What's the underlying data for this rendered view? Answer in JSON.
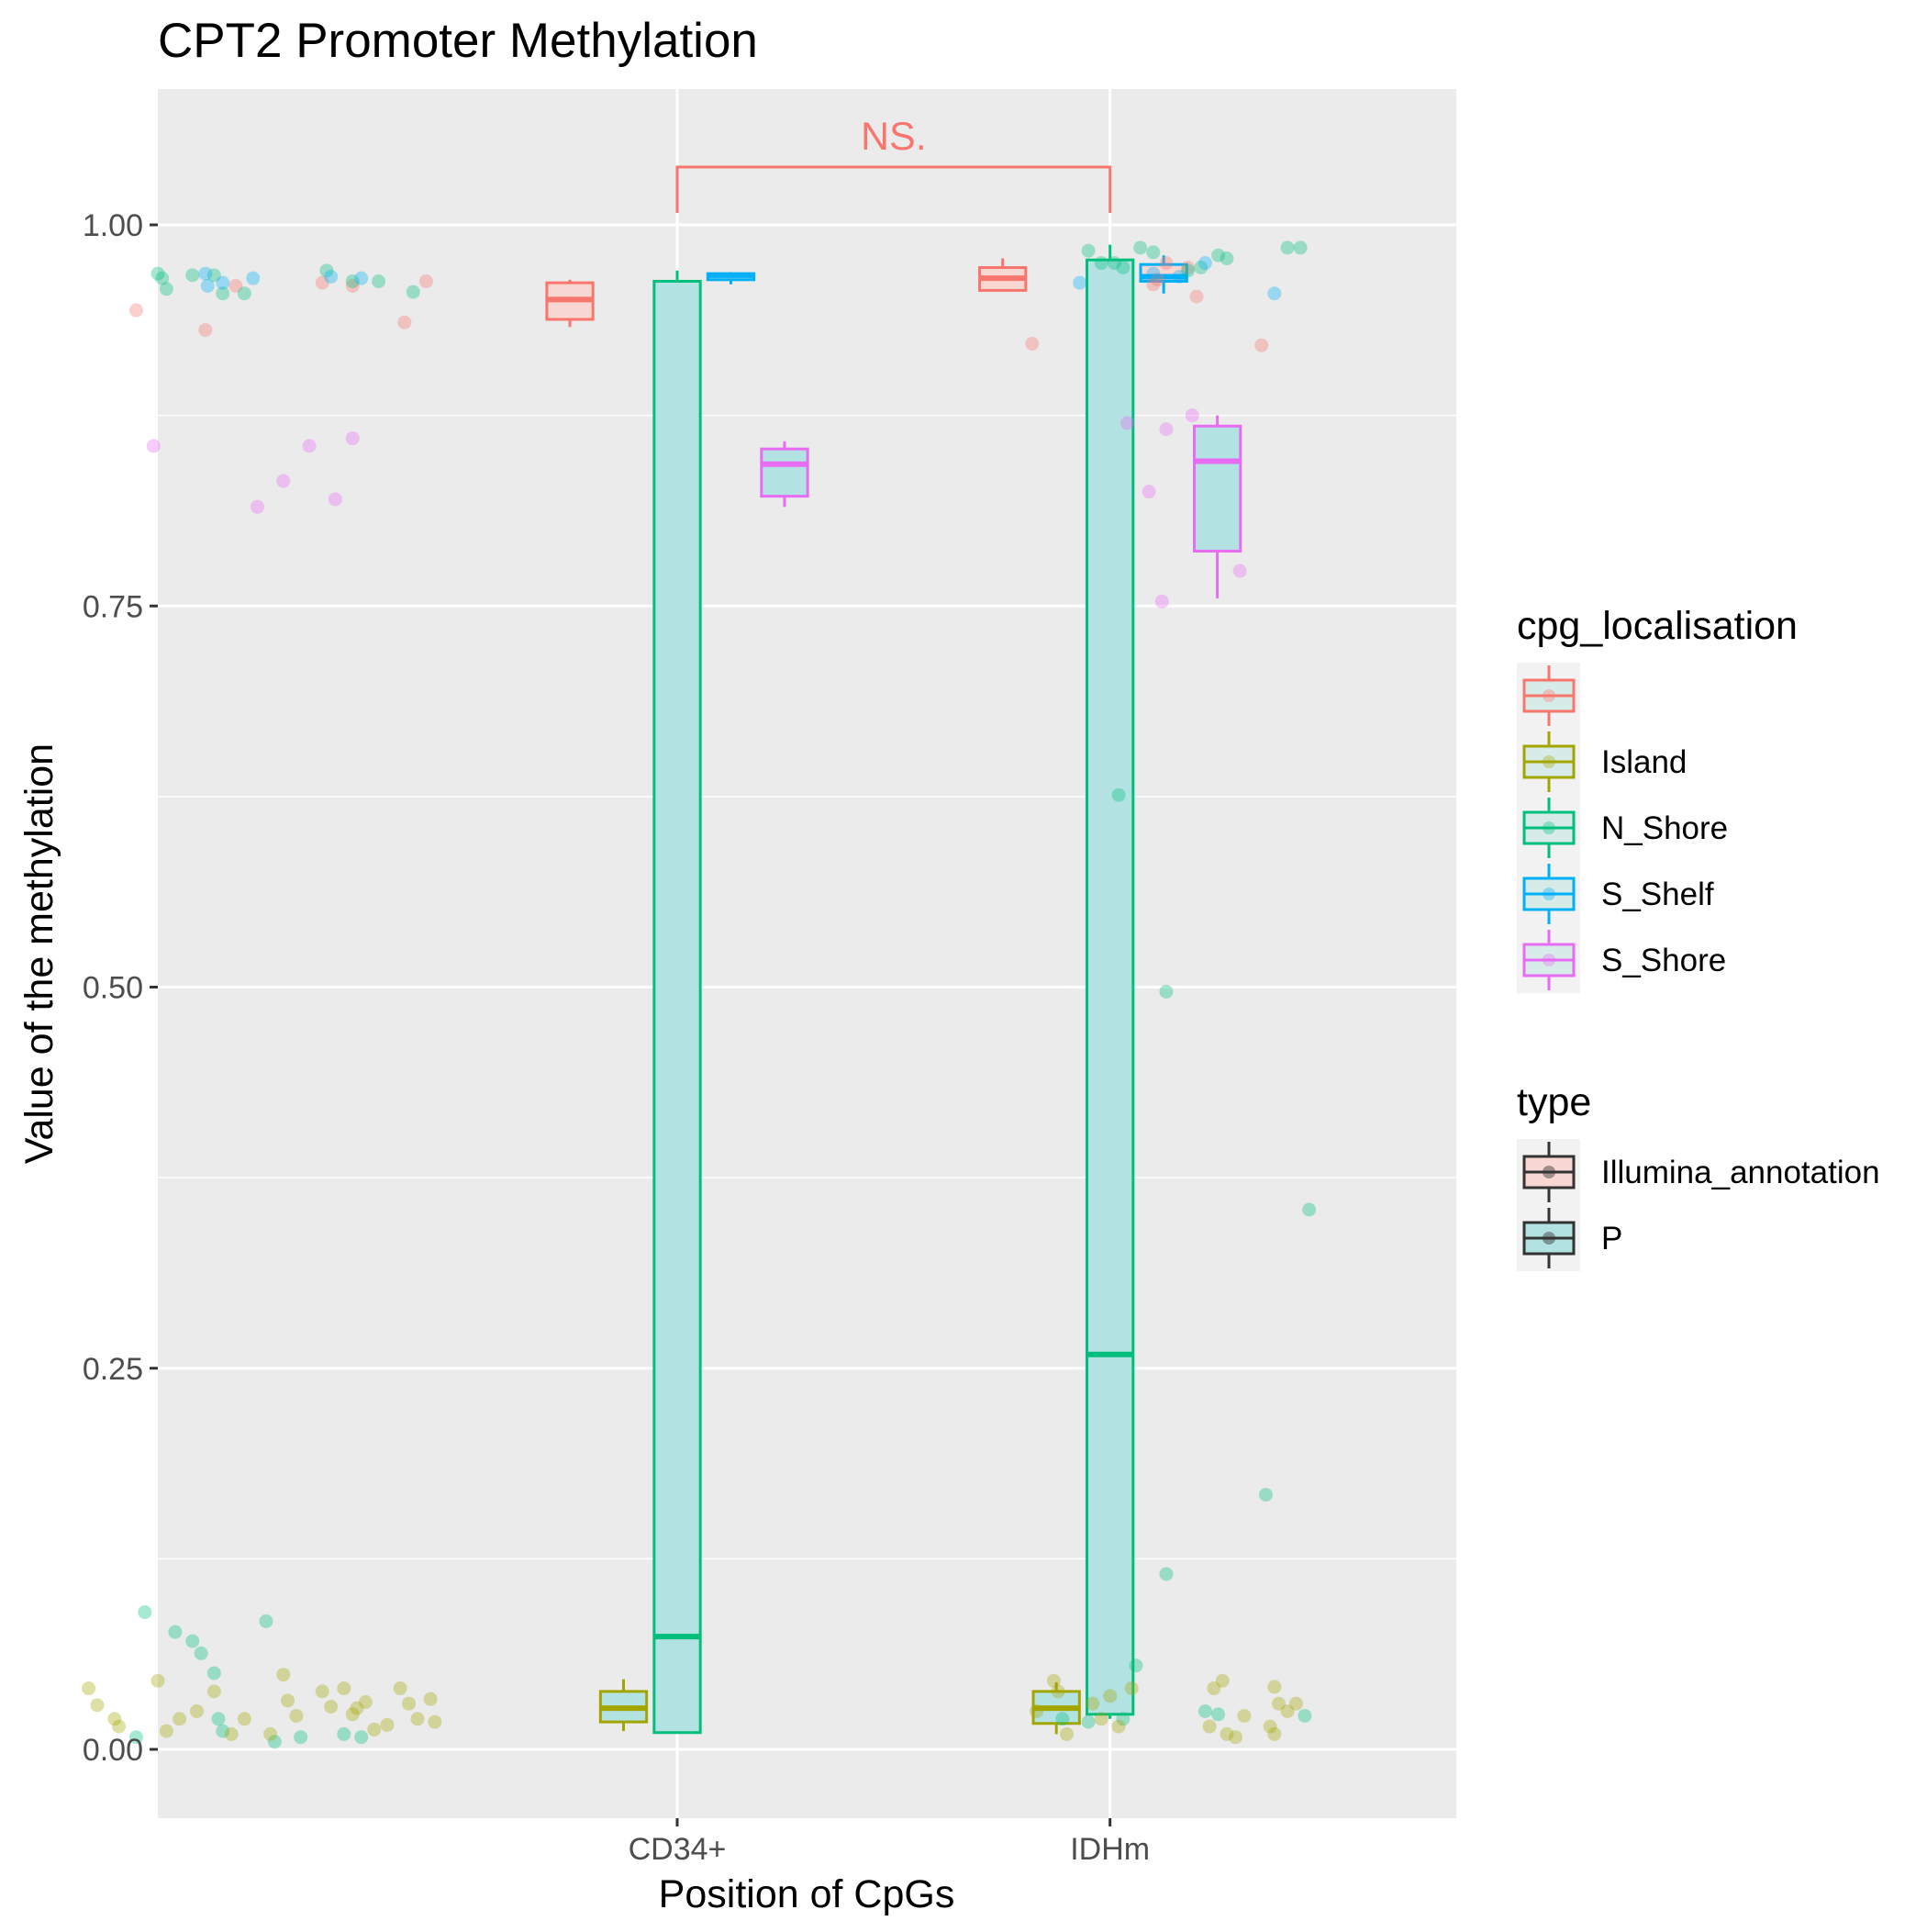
{
  "chart_data": {
    "type": "box",
    "title": "CPT2 Promoter Methylation",
    "xlabel": "Position of CpGs",
    "ylabel": "Value of the methylation",
    "categories": [
      "CD34+",
      "IDHm"
    ],
    "ylim": [
      -0.04,
      1.09
    ],
    "yticks": [
      0.0,
      0.25,
      0.5,
      0.75,
      1.0
    ],
    "ytick_labels": [
      "0.00",
      "0.25",
      "0.50",
      "0.75",
      "1.00"
    ],
    "grid": true,
    "legend_placement": "right",
    "colors": {
      "": "#F8766D",
      "Island": "#A3A500",
      "N_Shore": "#00BF7D",
      "S_Shelf": "#00B0F6",
      "S_Shore": "#E76BF3"
    },
    "fill_colors": {
      "Illumina_annotation": "#F8D7D3",
      "P": "#B2E2E2"
    },
    "boxes": [
      {
        "category": "CD34+",
        "cpg_localisation": "",
        "type": "Illumina_annotation",
        "q1": 0.938,
        "median": 0.951,
        "q3": 0.962,
        "whisker_low": 0.933,
        "whisker_high": 0.964
      },
      {
        "category": "CD34+",
        "cpg_localisation": "Island",
        "type": "P",
        "q1": 0.018,
        "median": 0.027,
        "q3": 0.038,
        "whisker_low": 0.012,
        "whisker_high": 0.046
      },
      {
        "category": "CD34+",
        "cpg_localisation": "N_Shore",
        "type": "P",
        "q1": 0.011,
        "median": 0.074,
        "q3": 0.963,
        "whisker_low": 0.011,
        "whisker_high": 0.97
      },
      {
        "category": "CD34+",
        "cpg_localisation": "S_Shelf",
        "type": "P",
        "q1": 0.964,
        "median": 0.967,
        "q3": 0.968,
        "whisker_low": 0.961,
        "whisker_high": 0.969
      },
      {
        "category": "CD34+",
        "cpg_localisation": "S_Shore",
        "type": "P",
        "q1": 0.822,
        "median": 0.843,
        "q3": 0.853,
        "whisker_low": 0.815,
        "whisker_high": 0.858
      },
      {
        "category": "IDHm",
        "cpg_localisation": "",
        "type": "Illumina_annotation",
        "q1": 0.957,
        "median": 0.965,
        "q3": 0.972,
        "whisker_low": 0.957,
        "whisker_high": 0.978
      },
      {
        "category": "IDHm",
        "cpg_localisation": "Island",
        "type": "P",
        "q1": 0.017,
        "median": 0.027,
        "q3": 0.038,
        "whisker_low": 0.01,
        "whisker_high": 0.044
      },
      {
        "category": "IDHm",
        "cpg_localisation": "N_Shore",
        "type": "P",
        "q1": 0.023,
        "median": 0.259,
        "q3": 0.977,
        "whisker_low": 0.02,
        "whisker_high": 0.987
      },
      {
        "category": "IDHm",
        "cpg_localisation": "S_Shelf",
        "type": "Illumina_annotation",
        "q1": 0.963,
        "median": 0.966,
        "q3": 0.974,
        "whisker_low": 0.955,
        "whisker_high": 0.98
      },
      {
        "category": "IDHm",
        "cpg_localisation": "S_Shore",
        "type": "P",
        "q1": 0.786,
        "median": 0.845,
        "q3": 0.868,
        "whisker_low": 0.755,
        "whisker_high": 0.875
      }
    ],
    "points": [
      {
        "x": -0.21,
        "y": 0.855,
        "loc": "S_Shore"
      },
      {
        "x": 0.03,
        "y": 0.815,
        "loc": "S_Shore"
      },
      {
        "x": 0.09,
        "y": 0.832,
        "loc": "S_Shore"
      },
      {
        "x": 0.25,
        "y": 0.86,
        "loc": "S_Shore"
      },
      {
        "x": 0.21,
        "y": 0.82,
        "loc": "S_Shore"
      },
      {
        "x": 0.15,
        "y": 0.855,
        "loc": "S_Shore"
      },
      {
        "x": -0.25,
        "y": 0.944,
        "loc": ""
      },
      {
        "x": -0.09,
        "y": 0.931,
        "loc": ""
      },
      {
        "x": -0.02,
        "y": 0.96,
        "loc": ""
      },
      {
        "x": 0.18,
        "y": 0.962,
        "loc": ""
      },
      {
        "x": 0.25,
        "y": 0.96,
        "loc": ""
      },
      {
        "x": 0.37,
        "y": 0.936,
        "loc": ""
      },
      {
        "x": 0.42,
        "y": 0.963,
        "loc": ""
      },
      {
        "x": -0.2,
        "y": 0.968,
        "loc": "N_Shore"
      },
      {
        "x": -0.19,
        "y": 0.965,
        "loc": "N_Shore"
      },
      {
        "x": -0.18,
        "y": 0.958,
        "loc": "N_Shore"
      },
      {
        "x": -0.12,
        "y": 0.967,
        "loc": "N_Shore"
      },
      {
        "x": -0.07,
        "y": 0.967,
        "loc": "N_Shore"
      },
      {
        "x": -0.05,
        "y": 0.955,
        "loc": "N_Shore"
      },
      {
        "x": 0.0,
        "y": 0.955,
        "loc": "N_Shore"
      },
      {
        "x": 0.19,
        "y": 0.97,
        "loc": "N_Shore"
      },
      {
        "x": 0.25,
        "y": 0.963,
        "loc": "N_Shore"
      },
      {
        "x": 0.31,
        "y": 0.963,
        "loc": "N_Shore"
      },
      {
        "x": 0.39,
        "y": 0.956,
        "loc": "N_Shore"
      },
      {
        "x": -0.09,
        "y": 0.968,
        "loc": "S_Shelf"
      },
      {
        "x": -0.085,
        "y": 0.96,
        "loc": "S_Shelf"
      },
      {
        "x": -0.05,
        "y": 0.962,
        "loc": "S_Shelf"
      },
      {
        "x": 0.02,
        "y": 0.965,
        "loc": "S_Shelf"
      },
      {
        "x": 0.2,
        "y": 0.966,
        "loc": "S_Shelf"
      },
      {
        "x": 0.27,
        "y": 0.965,
        "loc": "S_Shelf"
      },
      {
        "x": -0.23,
        "y": 0.09,
        "loc": "N_Shore"
      },
      {
        "x": -0.16,
        "y": 0.077,
        "loc": "N_Shore"
      },
      {
        "x": -0.12,
        "y": 0.071,
        "loc": "N_Shore"
      },
      {
        "x": -0.1,
        "y": 0.063,
        "loc": "N_Shore"
      },
      {
        "x": 0.05,
        "y": 0.084,
        "loc": "N_Shore"
      },
      {
        "x": -0.07,
        "y": 0.05,
        "loc": "N_Shore"
      },
      {
        "x": -0.06,
        "y": 0.02,
        "loc": "N_Shore"
      },
      {
        "x": -0.05,
        "y": 0.012,
        "loc": "N_Shore"
      },
      {
        "x": 0.07,
        "y": 0.005,
        "loc": "N_Shore"
      },
      {
        "x": 0.13,
        "y": 0.008,
        "loc": "N_Shore"
      },
      {
        "x": 0.23,
        "y": 0.01,
        "loc": "N_Shore"
      },
      {
        "x": 0.27,
        "y": 0.008,
        "loc": "N_Shore"
      },
      {
        "x": -0.25,
        "y": 0.008,
        "loc": "N_Shore"
      },
      {
        "x": -0.36,
        "y": 0.04,
        "loc": "Island"
      },
      {
        "x": -0.34,
        "y": 0.029,
        "loc": "Island"
      },
      {
        "x": -0.29,
        "y": 0.015,
        "loc": "Island"
      },
      {
        "x": -0.2,
        "y": 0.045,
        "loc": "Island"
      },
      {
        "x": -0.18,
        "y": 0.012,
        "loc": "Island"
      },
      {
        "x": -0.15,
        "y": 0.02,
        "loc": "Island"
      },
      {
        "x": -0.11,
        "y": 0.025,
        "loc": "Island"
      },
      {
        "x": -0.07,
        "y": 0.038,
        "loc": "Island"
      },
      {
        "x": -0.03,
        "y": 0.01,
        "loc": "Island"
      },
      {
        "x": 0.0,
        "y": 0.02,
        "loc": "Island"
      },
      {
        "x": 0.06,
        "y": 0.01,
        "loc": "Island"
      },
      {
        "x": 0.09,
        "y": 0.049,
        "loc": "Island"
      },
      {
        "x": 0.1,
        "y": 0.032,
        "loc": "Island"
      },
      {
        "x": 0.12,
        "y": 0.022,
        "loc": "Island"
      },
      {
        "x": 0.18,
        "y": 0.038,
        "loc": "Island"
      },
      {
        "x": 0.2,
        "y": 0.028,
        "loc": "Island"
      },
      {
        "x": 0.25,
        "y": 0.023,
        "loc": "Island"
      },
      {
        "x": 0.28,
        "y": 0.031,
        "loc": "Island"
      },
      {
        "x": 0.3,
        "y": 0.013,
        "loc": "Island"
      },
      {
        "x": 0.33,
        "y": 0.016,
        "loc": "Island"
      },
      {
        "x": 0.36,
        "y": 0.04,
        "loc": "Island"
      },
      {
        "x": 0.38,
        "y": 0.03,
        "loc": "Island"
      },
      {
        "x": 0.4,
        "y": 0.02,
        "loc": "Island"
      },
      {
        "x": 0.43,
        "y": 0.033,
        "loc": "Island"
      },
      {
        "x": 0.44,
        "y": 0.018,
        "loc": "Island"
      },
      {
        "x": 0.23,
        "y": 0.04,
        "loc": "Island"
      },
      {
        "x": 0.26,
        "y": 0.027,
        "loc": "Island"
      },
      {
        "x": -0.3,
        "y": 0.02,
        "loc": "Island"
      },
      {
        "x": 1.82,
        "y": 0.922,
        "loc": ""
      },
      {
        "x": 2.1,
        "y": 0.961,
        "loc": ""
      },
      {
        "x": 2.11,
        "y": 0.964,
        "loc": ""
      },
      {
        "x": 2.13,
        "y": 0.975,
        "loc": ""
      },
      {
        "x": 2.18,
        "y": 0.972,
        "loc": ""
      },
      {
        "x": 2.2,
        "y": 0.953,
        "loc": ""
      },
      {
        "x": 2.35,
        "y": 0.921,
        "loc": ""
      },
      {
        "x": 1.95,
        "y": 0.983,
        "loc": "N_Shore"
      },
      {
        "x": 1.98,
        "y": 0.975,
        "loc": "N_Shore"
      },
      {
        "x": 2.01,
        "y": 0.975,
        "loc": "N_Shore"
      },
      {
        "x": 2.03,
        "y": 0.972,
        "loc": "N_Shore"
      },
      {
        "x": 2.07,
        "y": 0.985,
        "loc": "N_Shore"
      },
      {
        "x": 2.1,
        "y": 0.982,
        "loc": "N_Shore"
      },
      {
        "x": 2.18,
        "y": 0.97,
        "loc": "N_Shore"
      },
      {
        "x": 2.21,
        "y": 0.972,
        "loc": "N_Shore"
      },
      {
        "x": 2.25,
        "y": 0.98,
        "loc": "N_Shore"
      },
      {
        "x": 2.27,
        "y": 0.978,
        "loc": "N_Shore"
      },
      {
        "x": 2.41,
        "y": 0.985,
        "loc": "N_Shore"
      },
      {
        "x": 2.44,
        "y": 0.985,
        "loc": "N_Shore"
      },
      {
        "x": 1.93,
        "y": 0.962,
        "loc": "S_Shelf"
      },
      {
        "x": 2.1,
        "y": 0.968,
        "loc": "S_Shelf"
      },
      {
        "x": 2.16,
        "y": 0.966,
        "loc": "S_Shelf"
      },
      {
        "x": 2.22,
        "y": 0.975,
        "loc": "S_Shelf"
      },
      {
        "x": 2.38,
        "y": 0.955,
        "loc": "S_Shelf"
      },
      {
        "x": 2.04,
        "y": 0.87,
        "loc": "S_Shore"
      },
      {
        "x": 2.09,
        "y": 0.825,
        "loc": "S_Shore"
      },
      {
        "x": 2.13,
        "y": 0.866,
        "loc": "S_Shore"
      },
      {
        "x": 2.19,
        "y": 0.875,
        "loc": "S_Shore"
      },
      {
        "x": 2.3,
        "y": 0.773,
        "loc": "S_Shore"
      },
      {
        "x": 2.12,
        "y": 0.753,
        "loc": "S_Shore"
      },
      {
        "x": 2.02,
        "y": 0.626,
        "loc": "N_Shore"
      },
      {
        "x": 2.13,
        "y": 0.497,
        "loc": "N_Shore"
      },
      {
        "x": 2.46,
        "y": 0.354,
        "loc": "N_Shore"
      },
      {
        "x": 2.36,
        "y": 0.167,
        "loc": "N_Shore"
      },
      {
        "x": 2.13,
        "y": 0.115,
        "loc": "N_Shore"
      },
      {
        "x": 2.06,
        "y": 0.055,
        "loc": "N_Shore"
      },
      {
        "x": 1.89,
        "y": 0.02,
        "loc": "N_Shore"
      },
      {
        "x": 1.95,
        "y": 0.018,
        "loc": "N_Shore"
      },
      {
        "x": 2.03,
        "y": 0.02,
        "loc": "N_Shore"
      },
      {
        "x": 2.22,
        "y": 0.025,
        "loc": "N_Shore"
      },
      {
        "x": 2.25,
        "y": 0.023,
        "loc": "N_Shore"
      },
      {
        "x": 2.45,
        "y": 0.022,
        "loc": "N_Shore"
      },
      {
        "x": 1.87,
        "y": 0.045,
        "loc": "Island"
      },
      {
        "x": 1.88,
        "y": 0.038,
        "loc": "Island"
      },
      {
        "x": 1.9,
        "y": 0.01,
        "loc": "Island"
      },
      {
        "x": 1.83,
        "y": 0.025,
        "loc": "Island"
      },
      {
        "x": 1.96,
        "y": 0.03,
        "loc": "Island"
      },
      {
        "x": 1.98,
        "y": 0.02,
        "loc": "Island"
      },
      {
        "x": 2.0,
        "y": 0.035,
        "loc": "Island"
      },
      {
        "x": 2.02,
        "y": 0.015,
        "loc": "Island"
      },
      {
        "x": 2.05,
        "y": 0.04,
        "loc": "Island"
      },
      {
        "x": 2.24,
        "y": 0.04,
        "loc": "Island"
      },
      {
        "x": 2.26,
        "y": 0.045,
        "loc": "Island"
      },
      {
        "x": 2.27,
        "y": 0.01,
        "loc": "Island"
      },
      {
        "x": 2.29,
        "y": 0.008,
        "loc": "Island"
      },
      {
        "x": 2.31,
        "y": 0.022,
        "loc": "Island"
      },
      {
        "x": 2.38,
        "y": 0.041,
        "loc": "Island"
      },
      {
        "x": 2.39,
        "y": 0.03,
        "loc": "Island"
      },
      {
        "x": 2.41,
        "y": 0.025,
        "loc": "Island"
      },
      {
        "x": 2.43,
        "y": 0.03,
        "loc": "Island"
      },
      {
        "x": 2.37,
        "y": 0.015,
        "loc": "Island"
      },
      {
        "x": 2.38,
        "y": 0.01,
        "loc": "Island"
      },
      {
        "x": 2.23,
        "y": 0.015,
        "loc": "Island"
      }
    ],
    "significance": {
      "label": "NS.",
      "from": "CD34+",
      "to": "IDHm",
      "color": "#F8766D"
    },
    "legends": [
      {
        "title": "cpg_localisation",
        "entries": [
          {
            "label": "",
            "key": ""
          },
          {
            "label": "Island",
            "key": "Island"
          },
          {
            "label": "N_Shore",
            "key": "N_Shore"
          },
          {
            "label": "S_Shelf",
            "key": "S_Shelf"
          },
          {
            "label": "S_Shore",
            "key": "S_Shore"
          }
        ]
      },
      {
        "title": "type",
        "entries": [
          {
            "label": "Illumina_annotation",
            "key": "Illumina_annotation"
          },
          {
            "label": "P",
            "key": "P"
          }
        ]
      }
    ]
  }
}
